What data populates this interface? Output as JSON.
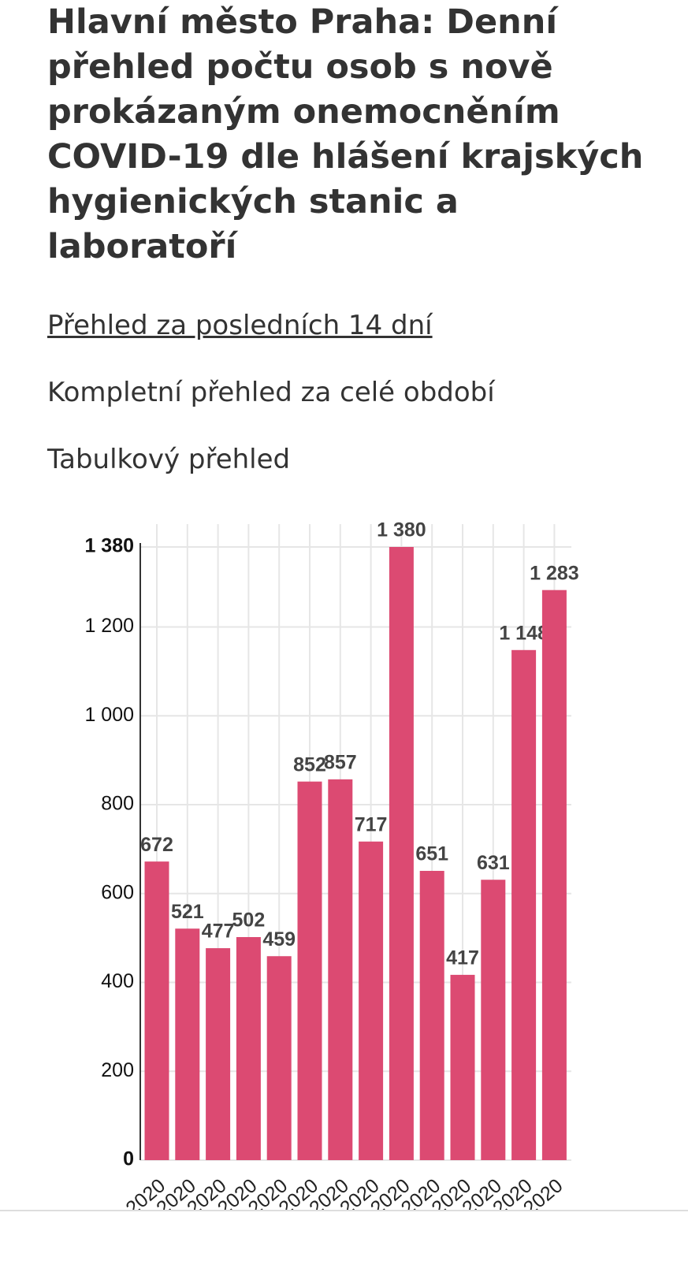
{
  "header": {
    "title": "Hlavní město Praha: Denní přehled počtu osob s nově prokázaným onemocněním COVID-19 dle hlášení krajských hygienických stanic a laboratoří"
  },
  "links": [
    "Přehled za posledních 14 dní",
    "Kompletní přehled za celé období",
    "Tabulkový přehled"
  ],
  "chart_data": {
    "type": "bar",
    "categories": [
      "2020",
      "2020",
      "2020",
      "2020",
      "2020",
      "2020",
      "2020",
      "2020",
      "2020",
      "2020",
      "2020",
      "2020",
      "2020",
      "2020"
    ],
    "values": [
      672,
      521,
      477,
      502,
      459,
      852,
      857,
      717,
      1380,
      651,
      417,
      631,
      1148,
      1283
    ],
    "value_labels": [
      "672",
      "521",
      "477",
      "502",
      "459",
      "852",
      "857",
      "717",
      "1 380",
      "651",
      "417",
      "631",
      "1 148",
      "1 283"
    ],
    "color": "#dc4a72",
    "ylim": [
      0,
      1380
    ],
    "yticks": [
      0,
      200,
      400,
      600,
      800,
      {
        "value": 1000,
        "label": "1 000"
      },
      {
        "value": 1200,
        "label": "1 200"
      },
      {
        "value": 1380,
        "label": "1 380"
      }
    ],
    "grid": true
  }
}
